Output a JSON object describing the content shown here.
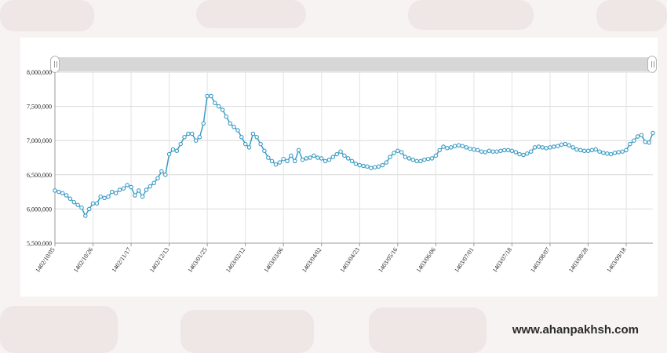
{
  "watermark": "www.ahanpakhsh.com",
  "chart_data": {
    "type": "line",
    "series_color": "#3a9bc4",
    "grid": true,
    "ylim": [
      5500000,
      8000000
    ],
    "y_ticks": [
      "5,500,000",
      "6,000,000",
      "6,500,000",
      "7,000,000",
      "7,500,000",
      "8,000,000"
    ],
    "x_tick_labels": [
      "1402/10/05",
      "1402/10/26",
      "1402/11/17",
      "1402/12/13",
      "1403/01/25",
      "1403/02/12",
      "1403/03/06",
      "1403/04/02",
      "1403/04/23",
      "1403/05/16",
      "1403/06/06",
      "1403/07/01",
      "1403/07/18",
      "1403/08/07",
      "1403/08/28",
      "1403/09/18"
    ],
    "x_tick_index": [
      0,
      10,
      20,
      30,
      40,
      50,
      60,
      70,
      80,
      90,
      100,
      110,
      120,
      130,
      140,
      150
    ],
    "values": [
      6270000,
      6250000,
      6230000,
      6200000,
      6150000,
      6100000,
      6060000,
      6020000,
      5900000,
      6000000,
      6080000,
      6080000,
      6180000,
      6160000,
      6180000,
      6250000,
      6230000,
      6280000,
      6300000,
      6350000,
      6320000,
      6200000,
      6270000,
      6180000,
      6280000,
      6330000,
      6380000,
      6450000,
      6550000,
      6500000,
      6800000,
      6870000,
      6850000,
      6950000,
      7050000,
      7100000,
      7100000,
      7000000,
      7050000,
      7250000,
      7650000,
      7650000,
      7550000,
      7500000,
      7450000,
      7350000,
      7250000,
      7200000,
      7150000,
      7050000,
      6950000,
      6900000,
      7100000,
      7050000,
      6950000,
      6850000,
      6750000,
      6700000,
      6650000,
      6680000,
      6730000,
      6700000,
      6780000,
      6700000,
      6860000,
      6720000,
      6740000,
      6750000,
      6780000,
      6750000,
      6740000,
      6700000,
      6720000,
      6760000,
      6800000,
      6840000,
      6780000,
      6740000,
      6700000,
      6660000,
      6640000,
      6630000,
      6620000,
      6600000,
      6610000,
      6620000,
      6640000,
      6680000,
      6760000,
      6820000,
      6850000,
      6830000,
      6760000,
      6740000,
      6720000,
      6700000,
      6700000,
      6720000,
      6730000,
      6740000,
      6780000,
      6860000,
      6910000,
      6890000,
      6900000,
      6920000,
      6930000,
      6920000,
      6900000,
      6880000,
      6870000,
      6860000,
      6840000,
      6830000,
      6850000,
      6840000,
      6840000,
      6850000,
      6860000,
      6860000,
      6850000,
      6830000,
      6800000,
      6790000,
      6810000,
      6840000,
      6900000,
      6910000,
      6900000,
      6890000,
      6900000,
      6910000,
      6920000,
      6940000,
      6950000,
      6930000,
      6900000,
      6870000,
      6860000,
      6850000,
      6850000,
      6860000,
      6870000,
      6840000,
      6820000,
      6810000,
      6800000,
      6820000,
      6830000,
      6840000,
      6860000,
      6950000,
      7000000,
      7060000,
      7080000,
      6980000,
      6970000,
      7110000
    ]
  }
}
